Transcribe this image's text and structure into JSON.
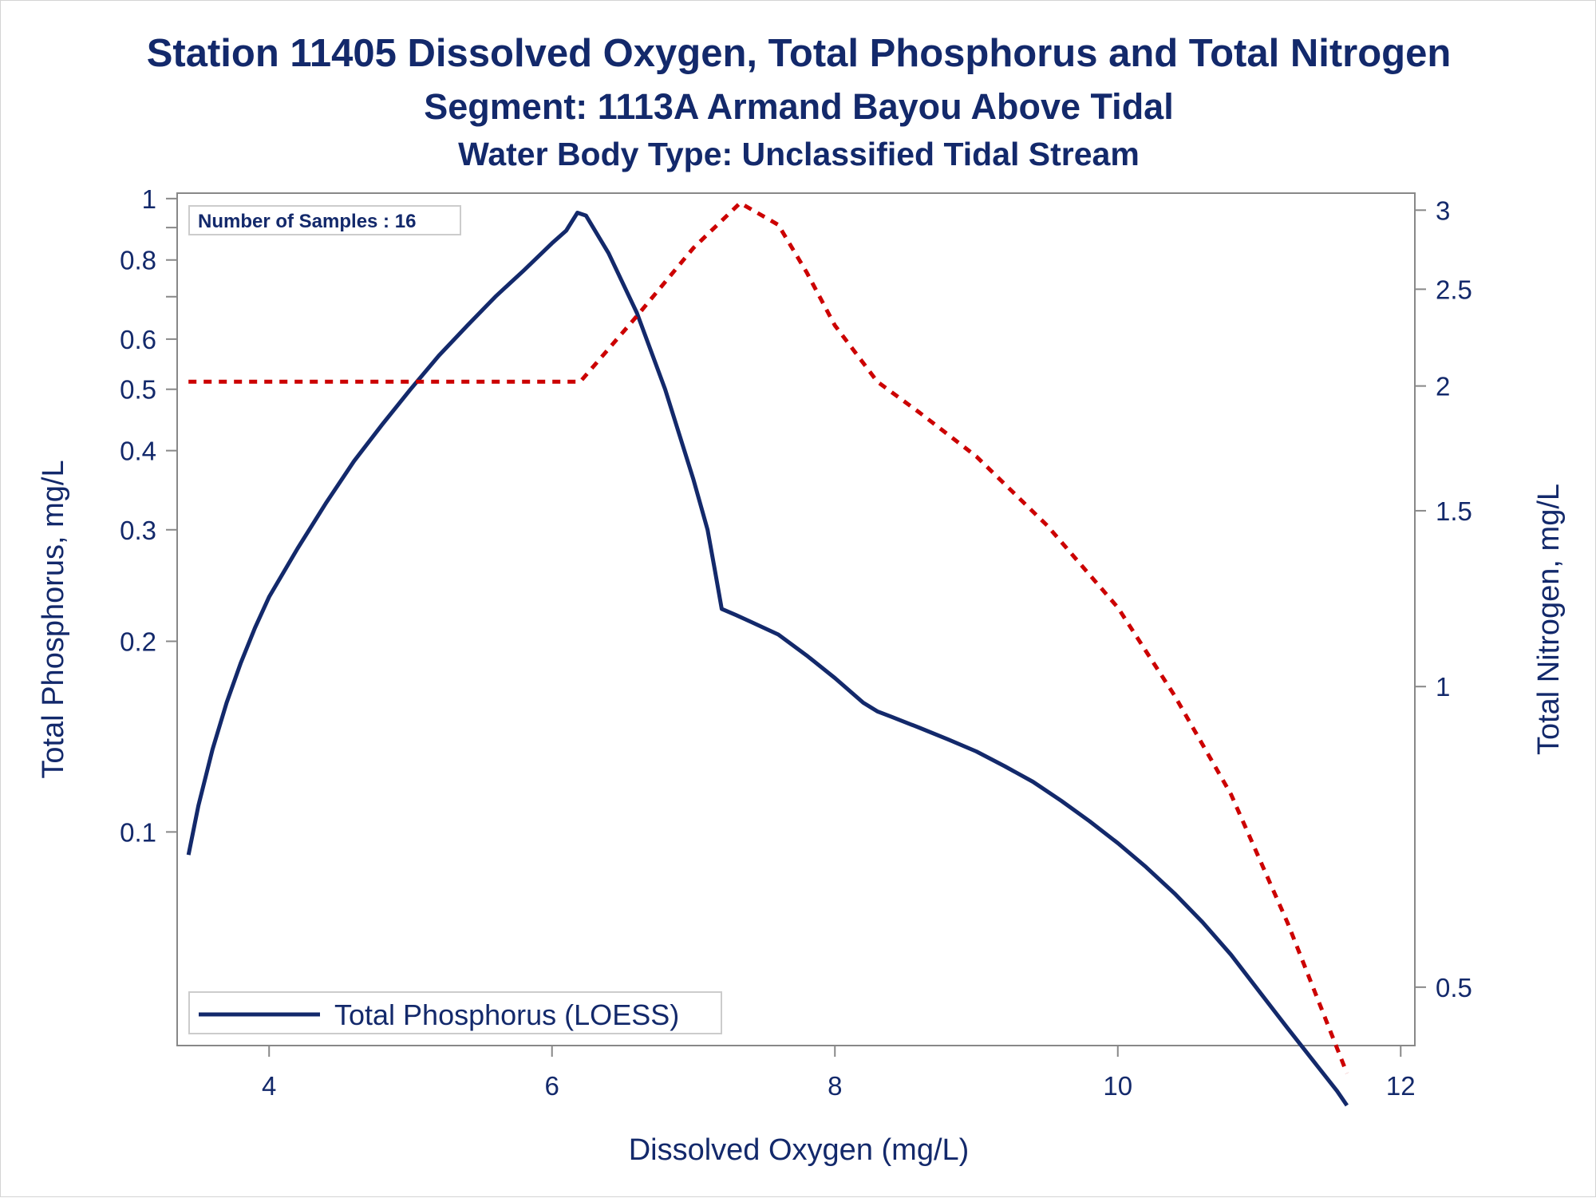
{
  "titles": {
    "line1": "Station 11405  Dissolved Oxygen, Total Phosphorus and Total Nitrogen",
    "line2": "Segment: 1113A  Armand Bayou Above Tidal",
    "line3": "Water Body Type: Unclassified Tidal Stream"
  },
  "samples_label": "Number of Samples : 16",
  "legend": {
    "label": "Total Phosphorus (LOESS)"
  },
  "colors": {
    "phosphorus": "#13296b",
    "nitrogen": "#cc0000",
    "axis": "#888888",
    "text": "#13296b"
  },
  "chart_data": {
    "type": "line",
    "xlabel": "Dissolved Oxygen (mg/L)",
    "ylabel": "Total Phosphorus, mg/L",
    "y2label": "Total Nitrogen, mg/L",
    "xlim": [
      3.35,
      12.1
    ],
    "ylim_log": [
      0.046,
      1.02
    ],
    "y2lim_log": [
      0.437,
      3.12
    ],
    "x_ticks": [
      4,
      6,
      8,
      10,
      12
    ],
    "y_ticks": [
      {
        "value": 1,
        "label": "1"
      },
      {
        "value": 0.8,
        "label": "0.8"
      },
      {
        "value": 0.6,
        "label": "0.6"
      },
      {
        "value": 0.5,
        "label": "0.5"
      },
      {
        "value": 0.4,
        "label": "0.4"
      },
      {
        "value": 0.3,
        "label": "0.3"
      },
      {
        "value": 0.2,
        "label": "0.2"
      },
      {
        "value": 0.1,
        "label": "0.1"
      }
    ],
    "y_minor_ticks": [
      0.9,
      0.7
    ],
    "y2_ticks": [
      {
        "value": 3,
        "label": "3"
      },
      {
        "value": 2.5,
        "label": "2.5"
      },
      {
        "value": 2,
        "label": "2"
      },
      {
        "value": 1.5,
        "label": "1.5"
      },
      {
        "value": 1,
        "label": "1"
      },
      {
        "value": 0.5,
        "label": "0.5"
      }
    ],
    "series": [
      {
        "name": "Total Phosphorus (LOESS)",
        "axis": "left",
        "style": "solid",
        "x": [
          3.43,
          3.5,
          3.6,
          3.7,
          3.8,
          3.9,
          4.0,
          4.2,
          4.4,
          4.6,
          4.8,
          5.0,
          5.2,
          5.4,
          5.6,
          5.8,
          6.0,
          6.1,
          6.18,
          6.24,
          6.4,
          6.6,
          6.8,
          7.0,
          7.1,
          7.15,
          7.2,
          7.3,
          7.4,
          7.6,
          7.8,
          8.0,
          8.2,
          8.3,
          8.4,
          8.6,
          8.8,
          9.0,
          9.2,
          9.4,
          9.6,
          9.8,
          10.0,
          10.2,
          10.4,
          10.6,
          10.8,
          11.0,
          11.2,
          11.4,
          11.55,
          11.62
        ],
        "y": [
          0.092,
          0.11,
          0.135,
          0.16,
          0.185,
          0.21,
          0.235,
          0.28,
          0.33,
          0.385,
          0.44,
          0.5,
          0.565,
          0.63,
          0.7,
          0.77,
          0.85,
          0.89,
          0.95,
          0.94,
          0.82,
          0.66,
          0.5,
          0.36,
          0.3,
          0.26,
          0.225,
          0.22,
          0.215,
          0.205,
          0.19,
          0.175,
          0.16,
          0.155,
          0.152,
          0.146,
          0.14,
          0.134,
          0.127,
          0.12,
          0.112,
          0.104,
          0.096,
          0.088,
          0.08,
          0.072,
          0.064,
          0.056,
          0.049,
          0.043,
          0.039,
          0.037
        ]
      },
      {
        "name": "Total Nitrogen",
        "axis": "right",
        "style": "dashed",
        "x": [
          3.43,
          4.0,
          5.0,
          6.0,
          6.2,
          6.6,
          7.0,
          7.33,
          7.6,
          7.8,
          8.0,
          8.3,
          8.6,
          9.0,
          9.5,
          10.0,
          10.4,
          10.8,
          11.2,
          11.62
        ],
        "y": [
          2.02,
          2.02,
          2.02,
          2.02,
          2.02,
          2.35,
          2.75,
          3.05,
          2.9,
          2.6,
          2.3,
          2.02,
          1.88,
          1.7,
          1.45,
          1.2,
          0.98,
          0.78,
          0.58,
          0.41
        ]
      }
    ]
  }
}
